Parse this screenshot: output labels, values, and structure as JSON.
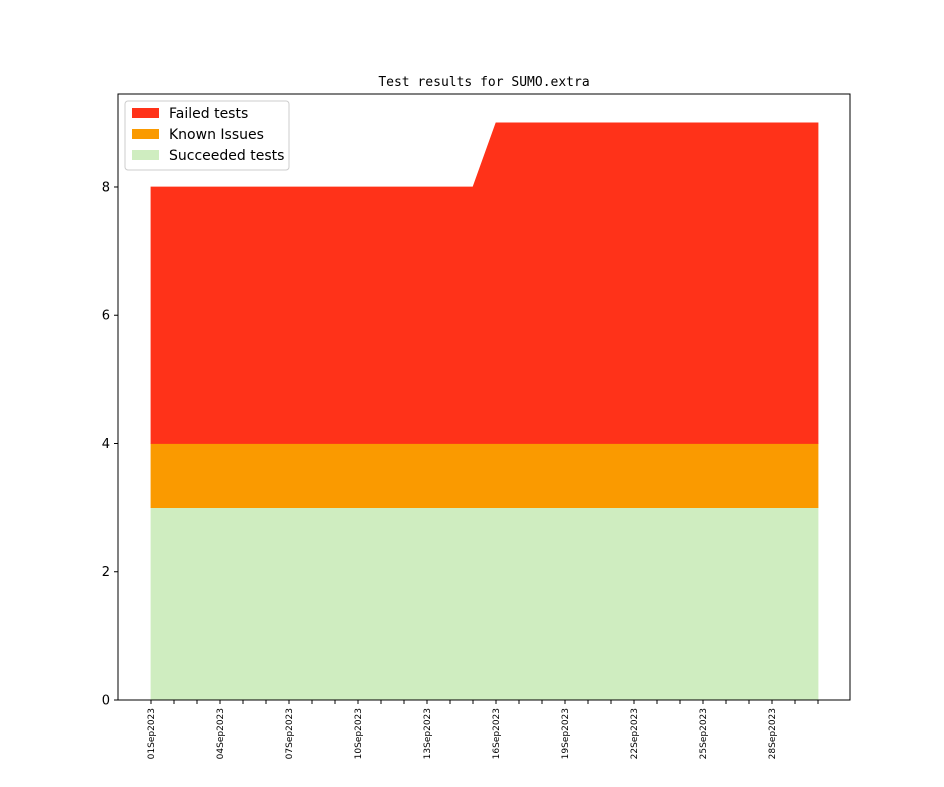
{
  "chart_data": {
    "type": "area",
    "stacked": true,
    "title": "Test results for SUMO.extra",
    "xlabel": "",
    "ylabel": "",
    "x": [
      "01Sep2023",
      "02Sep2023",
      "03Sep2023",
      "04Sep2023",
      "05Sep2023",
      "06Sep2023",
      "07Sep2023",
      "08Sep2023",
      "09Sep2023",
      "10Sep2023",
      "11Sep2023",
      "12Sep2023",
      "13Sep2023",
      "14Sep2023",
      "15Sep2023",
      "16Sep2023",
      "17Sep2023",
      "18Sep2023",
      "19Sep2023",
      "20Sep2023",
      "21Sep2023",
      "22Sep2023",
      "23Sep2023",
      "24Sep2023",
      "25Sep2023",
      "26Sep2023",
      "27Sep2023",
      "28Sep2023",
      "29Sep2023",
      "30Sep2023"
    ],
    "x_tick_labels": [
      "01Sep2023",
      "04Sep2023",
      "07Sep2023",
      "10Sep2023",
      "13Sep2023",
      "16Sep2023",
      "19Sep2023",
      "22Sep2023",
      "25Sep2023",
      "28Sep2023"
    ],
    "ylim": [
      0,
      9.45
    ],
    "y_ticks": [
      0,
      2,
      4,
      6,
      8
    ],
    "legend_position": "top-left",
    "grid": false,
    "series": [
      {
        "name": "Succeeded tests",
        "color": "#cfedc0",
        "values": [
          3,
          3,
          3,
          3,
          3,
          3,
          3,
          3,
          3,
          3,
          3,
          3,
          3,
          3,
          3,
          3,
          3,
          3,
          3,
          3,
          3,
          3,
          3,
          3,
          3,
          3,
          3,
          3,
          3,
          3
        ]
      },
      {
        "name": "Known Issues",
        "color": "#fa9a00",
        "values": [
          1,
          1,
          1,
          1,
          1,
          1,
          1,
          1,
          1,
          1,
          1,
          1,
          1,
          1,
          1,
          1,
          1,
          1,
          1,
          1,
          1,
          1,
          1,
          1,
          1,
          1,
          1,
          1,
          1,
          1
        ]
      },
      {
        "name": "Failed tests",
        "color": "#ff3219",
        "values": [
          4,
          4,
          4,
          4,
          4,
          4,
          4,
          4,
          4,
          4,
          4,
          4,
          4,
          4,
          4,
          5,
          5,
          5,
          5,
          5,
          5,
          5,
          5,
          5,
          5,
          5,
          5,
          5,
          5,
          5
        ]
      }
    ],
    "legend_order": [
      "Failed tests",
      "Known Issues",
      "Succeeded tests"
    ]
  }
}
